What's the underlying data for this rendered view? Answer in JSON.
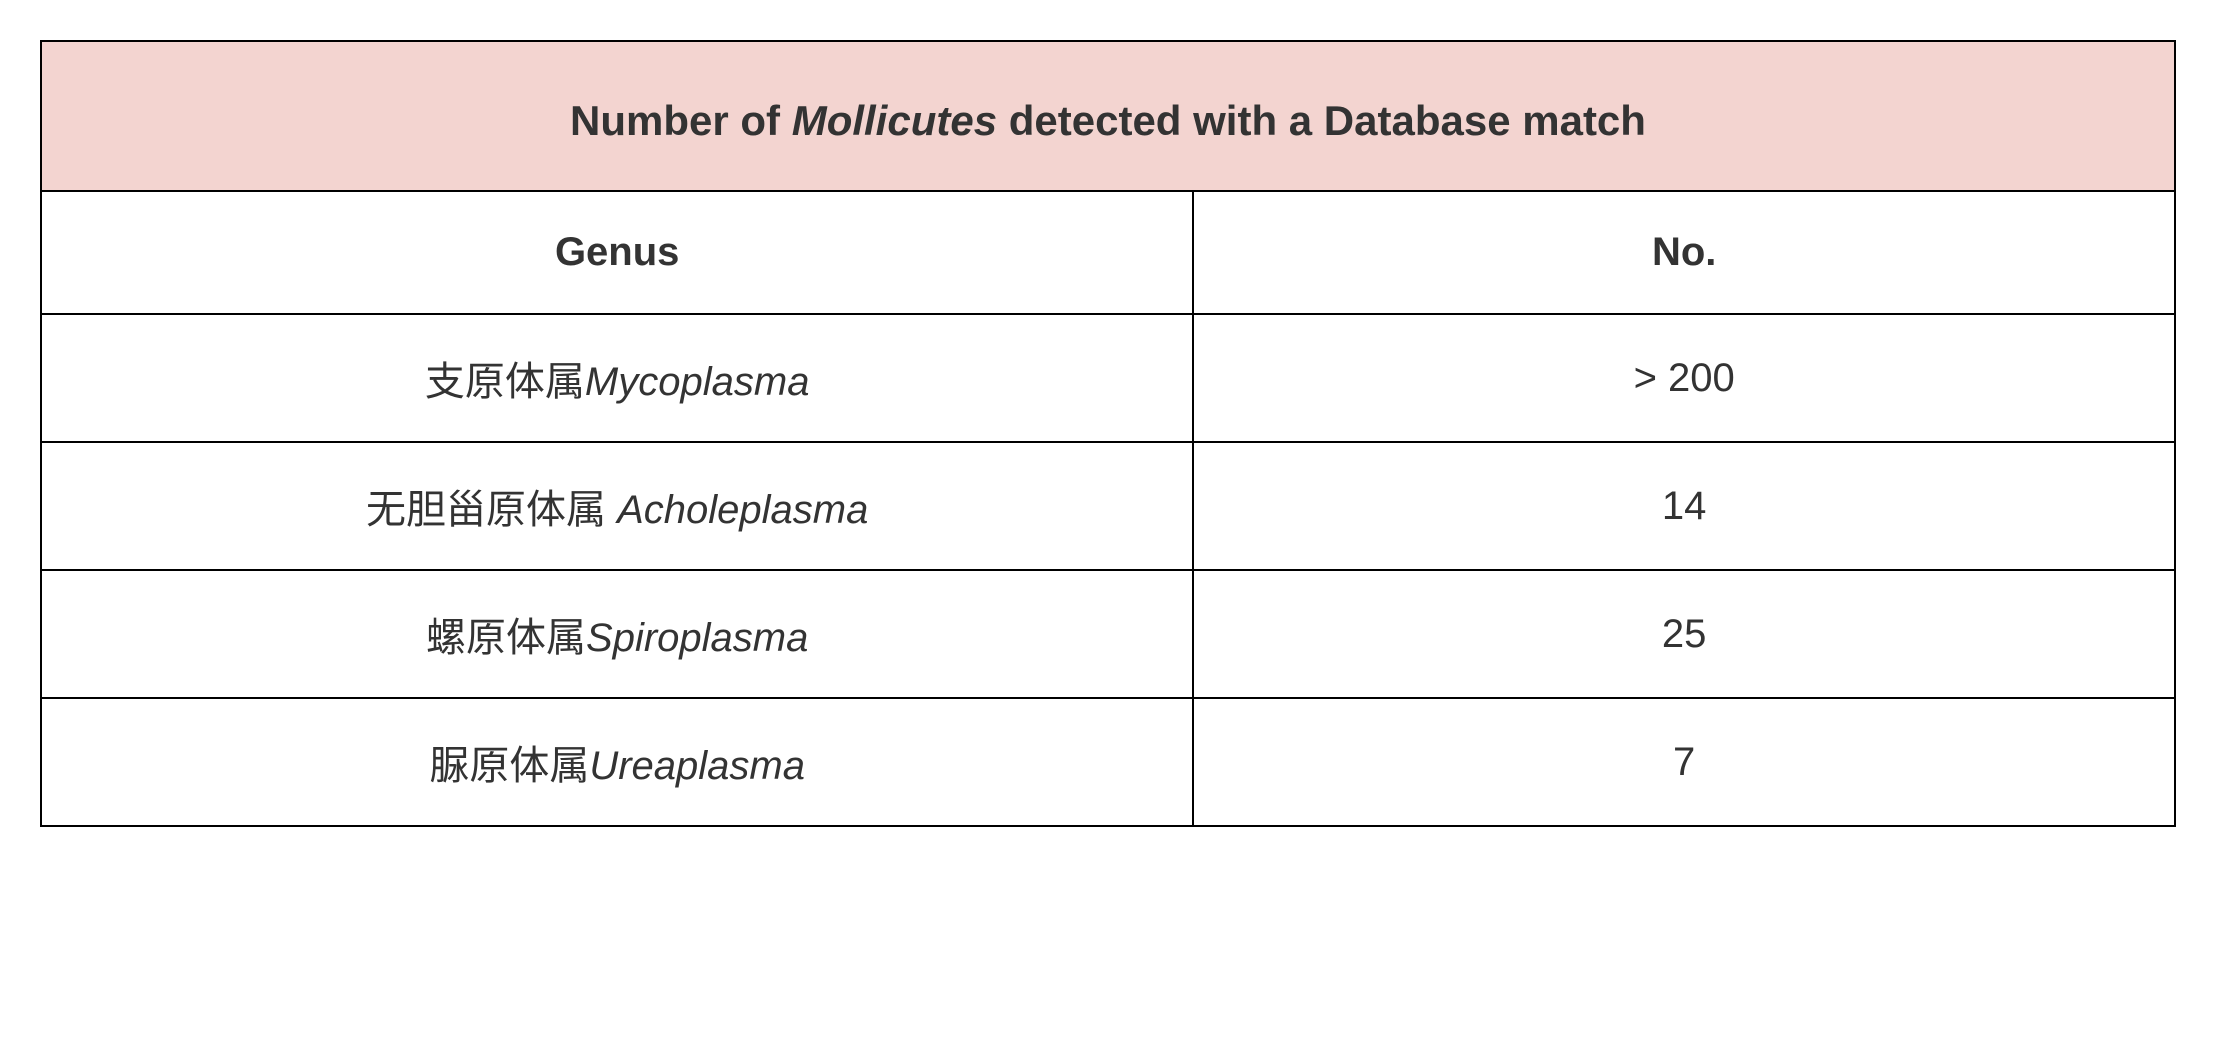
{
  "table": {
    "type": "table",
    "background_color": "#ffffff",
    "border_color": "#000000",
    "border_width": 2,
    "title_bg_color": "#f3d4d0",
    "title_fontsize": 42,
    "title_fontweight": "700",
    "header_fontsize": 40,
    "header_fontweight": "700",
    "cell_fontsize": 40,
    "text_color": "#333333",
    "title_prefix": "Number of ",
    "title_italic": "Mollicutes",
    "title_suffix": " detected with a Database match",
    "columns": [
      {
        "label": "Genus",
        "width_pct": 54
      },
      {
        "label": "No.",
        "width_pct": 46
      }
    ],
    "rows": [
      {
        "cn": "支原体属",
        "latin": "Mycoplasma",
        "no": "> 200"
      },
      {
        "cn": "无胆甾原体属 ",
        "latin": "Acholeplasma",
        "no": "14"
      },
      {
        "cn": "螺原体属",
        "latin": "Spiroplasma",
        "no": "25"
      },
      {
        "cn": "脲原体属",
        "latin": "Ureaplasma",
        "no": "7"
      }
    ]
  }
}
